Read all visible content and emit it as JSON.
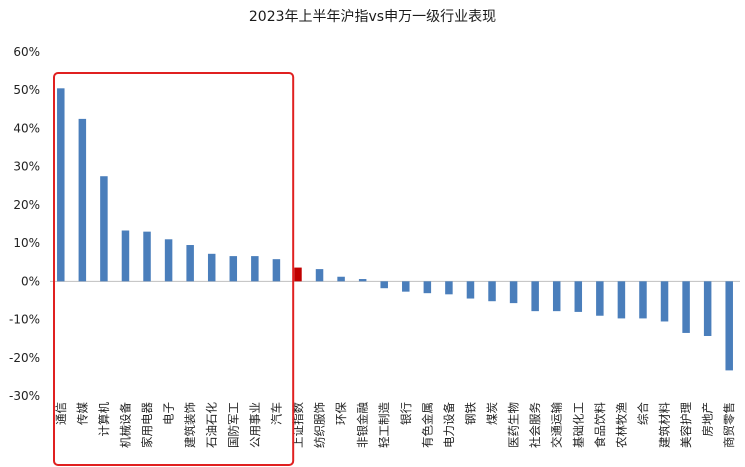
{
  "chart_data": {
    "type": "bar",
    "title": "2023年上半年沪指vs申万一级行业表现",
    "xlabel": "",
    "ylabel": "",
    "ylim": [
      -0.3,
      0.6
    ],
    "yticks": [
      0.6,
      0.5,
      0.4,
      0.3,
      0.2,
      0.1,
      0.0,
      -0.1,
      -0.2,
      -0.3
    ],
    "ytick_labels": [
      "60%",
      "50%",
      "40%",
      "30%",
      "20%",
      "10%",
      "0%",
      "-10%",
      "-20%",
      "-30%"
    ],
    "categories": [
      "通信",
      "传媒",
      "计算机",
      "机械设备",
      "家用电器",
      "电子",
      "建筑装饰",
      "石油石化",
      "国防军工",
      "公用事业",
      "汽车",
      "上证指数",
      "纺织服饰",
      "环保",
      "非银金融",
      "轻工制造",
      "银行",
      "有色金属",
      "电力设备",
      "钢铁",
      "煤炭",
      "医药生物",
      "社会服务",
      "交通运输",
      "基础化工",
      "食品饮料",
      "农林牧渔",
      "综合",
      "建筑材料",
      "美容护理",
      "房地产",
      "商贸零售"
    ],
    "values": [
      0.505,
      0.425,
      0.275,
      0.133,
      0.13,
      0.11,
      0.095,
      0.072,
      0.066,
      0.066,
      0.058,
      0.036,
      0.032,
      0.012,
      0.006,
      -0.018,
      -0.027,
      -0.031,
      -0.034,
      -0.045,
      -0.052,
      -0.057,
      -0.078,
      -0.078,
      -0.08,
      -0.09,
      -0.097,
      -0.097,
      -0.105,
      -0.135,
      -0.143,
      -0.233
    ],
    "highlight_category": "上证指数",
    "colors": {
      "bar": "#4a7ebb",
      "highlight": "#c00000",
      "box": "#e02020",
      "axis": "#bfbfbf"
    },
    "annotation": "red box around the 11 industries outperforming the index"
  }
}
